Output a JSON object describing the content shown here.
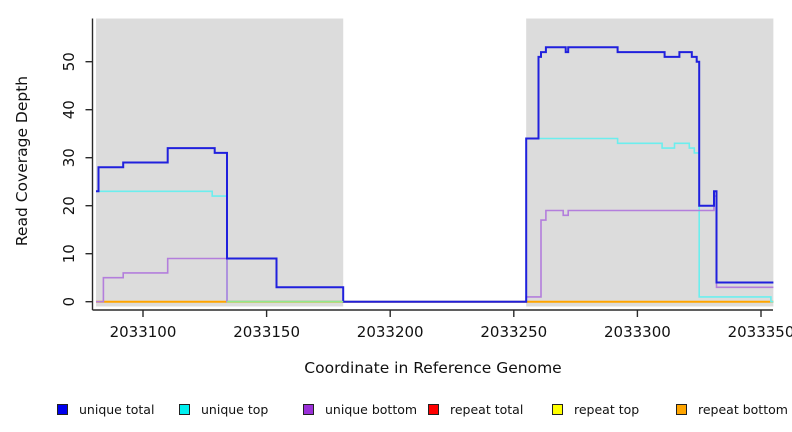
{
  "figure": {
    "background": "#ffffff",
    "shade_color": "#dcdcdc",
    "axis_color": "#2a2a2a",
    "text_color": "#111111"
  },
  "chart_data": {
    "type": "line",
    "title": "",
    "xlabel": "Coordinate in Reference Genome",
    "ylabel": "Read Coverage Depth",
    "xlim": [
      2033081,
      2033355
    ],
    "ylim": [
      0,
      59
    ],
    "x_ticks": [
      "2033100",
      "2033150",
      "2033200",
      "2033250",
      "2033300",
      "2033350"
    ],
    "x_tick_values": [
      2033100,
      2033150,
      2033200,
      2033250,
      2033300,
      2033350
    ],
    "y_ticks": [
      "0",
      "10",
      "20",
      "30",
      "40",
      "50"
    ],
    "y_tick_values": [
      0,
      10,
      20,
      30,
      40,
      50
    ],
    "grid": false,
    "legend_position": "bottom",
    "shaded_regions": [
      {
        "name": "left-gray-block",
        "x0": 2033081,
        "x1": 2033181
      },
      {
        "name": "right-gray-block",
        "x0": 2033255,
        "x1": 2033355
      }
    ],
    "series": [
      {
        "name": "repeat total",
        "color": "#ff0000",
        "width": 1.5,
        "points": [
          [
            2033081,
            0
          ],
          [
            2033355,
            0
          ]
        ]
      },
      {
        "name": "repeat top",
        "color": "#ffff00",
        "width": 1.5,
        "points": [
          [
            2033081,
            0
          ],
          [
            2033355,
            0
          ]
        ]
      },
      {
        "name": "repeat bottom",
        "color": "#ffa500",
        "width": 2,
        "points": [
          [
            2033081,
            0
          ],
          [
            2033355,
            0
          ]
        ]
      },
      {
        "name": "unique top",
        "color": "#6ceeee",
        "width": 1.6,
        "points": [
          [
            2033081,
            23
          ],
          [
            2033128,
            23
          ],
          [
            2033128,
            22
          ],
          [
            2033134,
            22
          ],
          [
            2033134,
            0
          ],
          [
            2033255,
            0
          ],
          [
            2033255,
            34
          ],
          [
            2033292,
            34
          ],
          [
            2033292,
            33
          ],
          [
            2033310,
            33
          ],
          [
            2033310,
            32
          ],
          [
            2033315,
            32
          ],
          [
            2033315,
            33
          ],
          [
            2033321,
            33
          ],
          [
            2033321,
            32
          ],
          [
            2033323,
            32
          ],
          [
            2033323,
            31
          ],
          [
            2033325,
            31
          ],
          [
            2033325,
            1
          ],
          [
            2033354,
            1
          ],
          [
            2033354,
            0
          ],
          [
            2033355,
            0
          ]
        ]
      },
      {
        "name": "unique bottom",
        "color": "#b37edc",
        "width": 1.6,
        "points": [
          [
            2033081,
            0
          ],
          [
            2033084,
            0
          ],
          [
            2033084,
            5
          ],
          [
            2033092,
            5
          ],
          [
            2033092,
            6
          ],
          [
            2033110,
            6
          ],
          [
            2033110,
            9
          ],
          [
            2033134,
            9
          ],
          [
            2033134,
            0
          ],
          [
            2033255,
            0
          ],
          [
            2033255,
            1
          ],
          [
            2033261,
            1
          ],
          [
            2033261,
            17
          ],
          [
            2033263,
            17
          ],
          [
            2033263,
            19
          ],
          [
            2033270,
            19
          ],
          [
            2033270,
            18
          ],
          [
            2033272,
            18
          ],
          [
            2033272,
            19
          ],
          [
            2033331,
            19
          ],
          [
            2033331,
            22
          ],
          [
            2033332,
            22
          ],
          [
            2033332,
            3
          ],
          [
            2033355,
            3
          ]
        ]
      },
      {
        "name": "unique total",
        "color": "#2020dd",
        "width": 2,
        "points": [
          [
            2033081,
            23
          ],
          [
            2033082,
            23
          ],
          [
            2033082,
            28
          ],
          [
            2033092,
            28
          ],
          [
            2033092,
            29
          ],
          [
            2033110,
            29
          ],
          [
            2033110,
            32
          ],
          [
            2033129,
            32
          ],
          [
            2033129,
            31
          ],
          [
            2033134,
            31
          ],
          [
            2033134,
            9
          ],
          [
            2033154,
            9
          ],
          [
            2033154,
            3
          ],
          [
            2033181,
            3
          ],
          [
            2033181,
            0
          ],
          [
            2033255,
            0
          ],
          [
            2033255,
            34
          ],
          [
            2033260,
            34
          ],
          [
            2033260,
            51
          ],
          [
            2033261,
            51
          ],
          [
            2033261,
            52
          ],
          [
            2033263,
            52
          ],
          [
            2033263,
            53
          ],
          [
            2033271,
            53
          ],
          [
            2033271,
            52
          ],
          [
            2033272,
            52
          ],
          [
            2033272,
            53
          ],
          [
            2033292,
            53
          ],
          [
            2033292,
            52
          ],
          [
            2033311,
            52
          ],
          [
            2033311,
            51
          ],
          [
            2033317,
            51
          ],
          [
            2033317,
            52
          ],
          [
            2033322,
            52
          ],
          [
            2033322,
            51
          ],
          [
            2033324,
            51
          ],
          [
            2033324,
            50
          ],
          [
            2033325,
            50
          ],
          [
            2033325,
            20
          ],
          [
            2033331,
            20
          ],
          [
            2033331,
            23
          ],
          [
            2033332,
            23
          ],
          [
            2033332,
            4
          ],
          [
            2033355,
            4
          ]
        ]
      }
    ],
    "baseline_overlay": {
      "name": "cyan-yellow-blend-segment",
      "color": "#90e890",
      "width": 1.6,
      "points": [
        [
          2033134,
          0
        ],
        [
          2033181,
          0
        ]
      ]
    },
    "legend": [
      {
        "label": "unique total",
        "color": "#0000ee"
      },
      {
        "label": "unique top",
        "color": "#00f0f0"
      },
      {
        "label": "unique bottom",
        "color": "#9a30d8"
      },
      {
        "label": "repeat total",
        "color": "#ff0000"
      },
      {
        "label": "repeat top",
        "color": "#ffff00"
      },
      {
        "label": "repeat bottom",
        "color": "#ffa500"
      }
    ]
  }
}
